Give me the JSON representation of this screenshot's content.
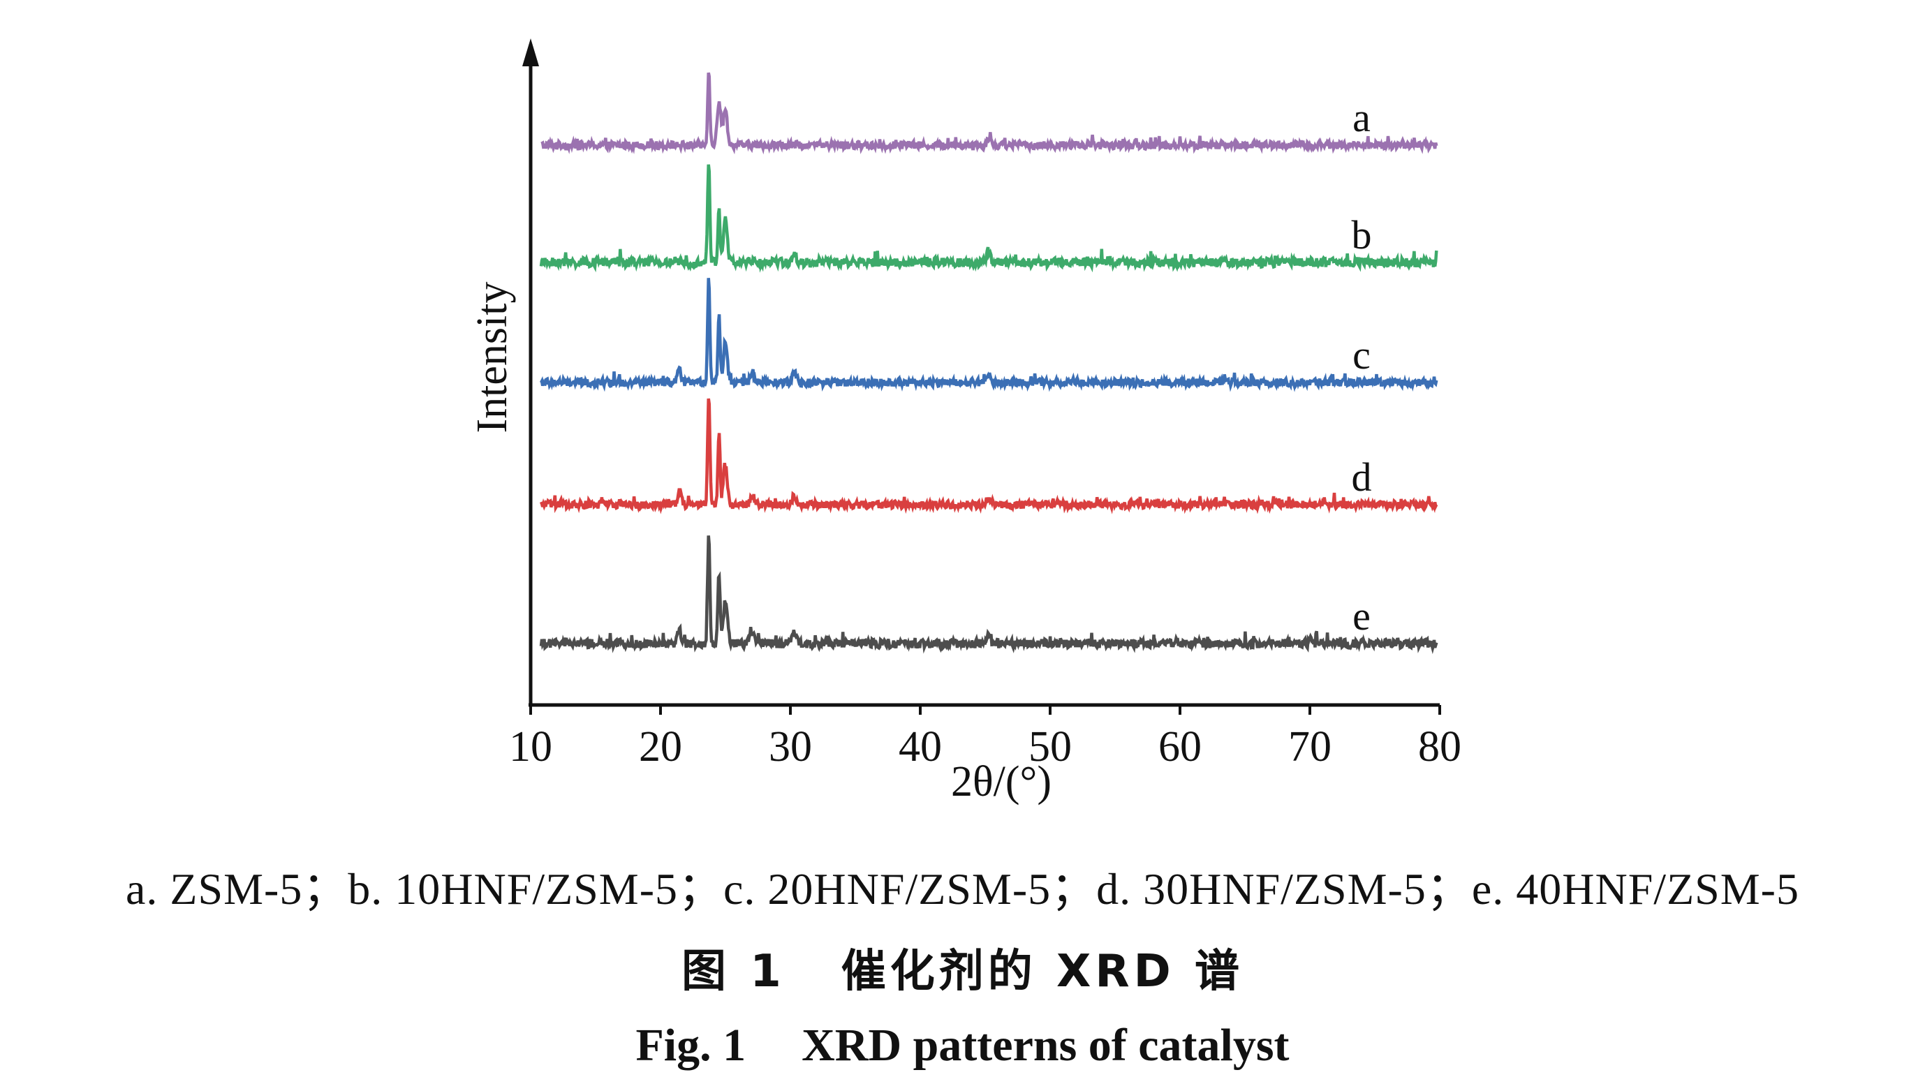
{
  "chart_data": {
    "type": "line",
    "xlabel": "2θ/(°)",
    "ylabel": "Intensity",
    "xlim": [
      10,
      80
    ],
    "xticks": [
      10,
      20,
      30,
      40,
      50,
      60,
      70,
      80
    ],
    "y_tick_labels": "none",
    "grid": false,
    "legend": "inline labels at right end of each curve",
    "stacked_offset": true,
    "series": [
      {
        "name": "a",
        "color": "#9b72b0",
        "peaks": [
          {
            "x": 23.1,
            "y": 1.0
          },
          {
            "x": 23.9,
            "y": 0.55
          },
          {
            "x": 24.4,
            "y": 0.45
          },
          {
            "x": 45.0,
            "y": 0.1
          }
        ],
        "noise": 0.05
      },
      {
        "name": "b",
        "color": "#3daa6a",
        "peaks": [
          {
            "x": 23.1,
            "y": 1.35
          },
          {
            "x": 23.9,
            "y": 0.72
          },
          {
            "x": 24.4,
            "y": 0.55
          },
          {
            "x": 29.8,
            "y": 0.12
          },
          {
            "x": 45.0,
            "y": 0.1
          }
        ],
        "noise": 0.06
      },
      {
        "name": "c",
        "color": "#3b6fb5",
        "peaks": [
          {
            "x": 20.8,
            "y": 0.15
          },
          {
            "x": 23.1,
            "y": 1.4
          },
          {
            "x": 23.9,
            "y": 0.9
          },
          {
            "x": 24.4,
            "y": 0.5
          },
          {
            "x": 26.5,
            "y": 0.12
          },
          {
            "x": 29.8,
            "y": 0.15
          },
          {
            "x": 45.0,
            "y": 0.1
          }
        ],
        "noise": 0.05
      },
      {
        "name": "d",
        "color": "#d93f3f",
        "peaks": [
          {
            "x": 20.8,
            "y": 0.15
          },
          {
            "x": 23.1,
            "y": 1.45
          },
          {
            "x": 23.9,
            "y": 0.95
          },
          {
            "x": 24.4,
            "y": 0.5
          },
          {
            "x": 26.5,
            "y": 0.12
          },
          {
            "x": 29.8,
            "y": 0.12
          },
          {
            "x": 45.0,
            "y": 0.1
          }
        ],
        "noise": 0.05
      },
      {
        "name": "e",
        "color": "#4d4d4d",
        "peaks": [
          {
            "x": 20.8,
            "y": 0.18
          },
          {
            "x": 23.1,
            "y": 1.5
          },
          {
            "x": 23.9,
            "y": 0.95
          },
          {
            "x": 24.4,
            "y": 0.55
          },
          {
            "x": 26.5,
            "y": 0.15
          },
          {
            "x": 29.8,
            "y": 0.18
          },
          {
            "x": 45.0,
            "y": 0.12
          }
        ],
        "noise": 0.06
      }
    ]
  },
  "captions": {
    "legend": "a. ZSM-5；b. 10HNF/ZSM-5；c. 20HNF/ZSM-5；d. 30HNF/ZSM-5；e. 40HNF/ZSM-5",
    "cn_figure_number": "图 1",
    "cn_title": "催化剂的 XRD 谱",
    "en_figure_number": "Fig. 1",
    "en_title": "XRD patterns of catalyst"
  }
}
